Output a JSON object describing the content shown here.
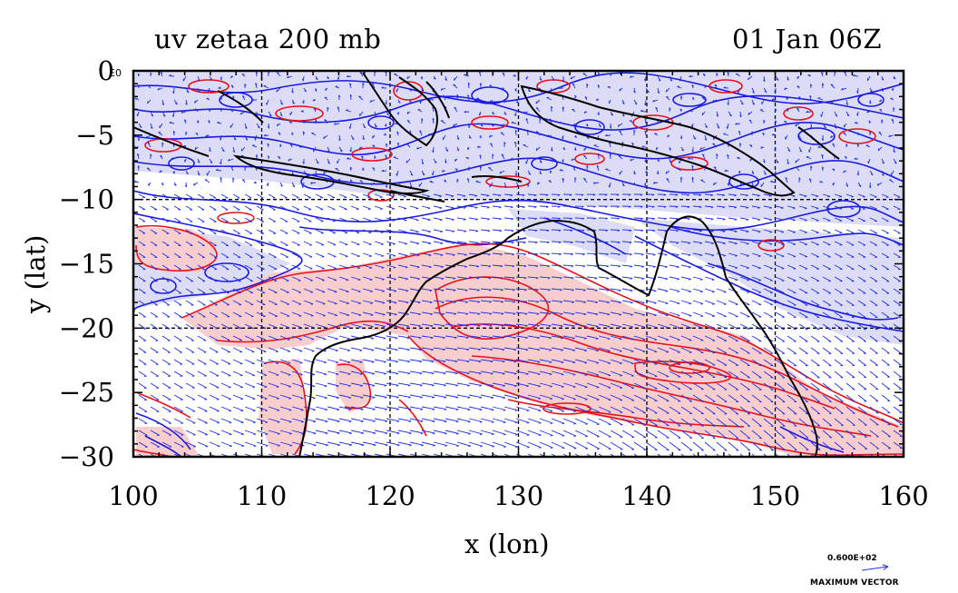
{
  "title_left": "uv zetaa 200 mb",
  "title_right": "01 Jan 06Z",
  "map": {
    "xlabel": "x (lon)",
    "ylabel": "y (lat)",
    "x_ticks": [
      "100",
      "110",
      "120",
      "130",
      "140",
      "150",
      "160"
    ],
    "y_ticks": [
      "0",
      "−5",
      "−10",
      "−15",
      "−20",
      "−25",
      "−30"
    ],
    "x_range": [
      100,
      160
    ],
    "y_range": [
      -30,
      0
    ],
    "grid_lines_lon": [
      110,
      120,
      130,
      140,
      150
    ],
    "grid_lines_lat": [
      -10,
      -20
    ],
    "corner_label": "E0"
  },
  "vector_reference": {
    "value": "0.600E+02",
    "label": "MAXIMUM VECTOR"
  },
  "colors": {
    "positive_contour": "#e8101a",
    "positive_fill": "#f8cdcd",
    "negative_contour": "#1a1ae0",
    "negative_fill": "#dcdcf6",
    "vector": "#2030e0",
    "coastline": "#000000",
    "grid": "#000000"
  }
}
